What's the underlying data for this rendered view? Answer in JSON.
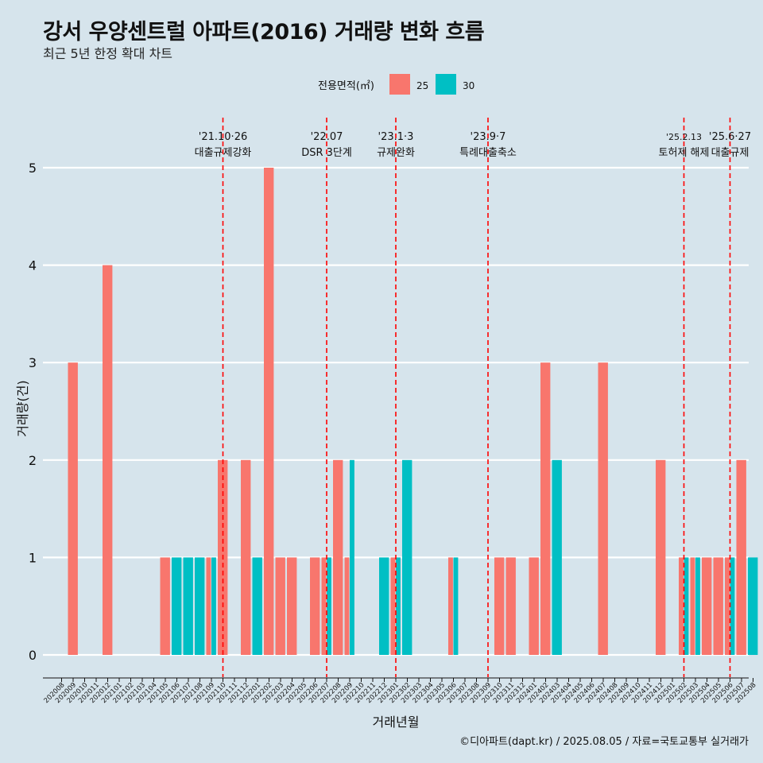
{
  "title": "강서 우양센트럴 아파트(2016) 거래량 변화 흐름",
  "subtitle": "최근 5년 한정 확대 차트",
  "caption": "©디아파트(dapt.kr) / 2025.08.05 / 자료=국토교통부 실거래가",
  "legend": {
    "title": "전용면적(㎡)",
    "placement": "top"
  },
  "colors": {
    "s25": "#f8766d",
    "s30": "#00bfc4",
    "background": "#d6e4ec",
    "grid": "#ffffff",
    "vline": "#ff0000"
  },
  "chart_data": {
    "type": "bar",
    "xlabel": "거래년월",
    "ylabel": "거래량(건)",
    "ylim": [
      0,
      5
    ],
    "yticks": [
      0,
      1,
      2,
      3,
      4,
      5
    ],
    "grid": true,
    "categories": [
      "202008",
      "202009",
      "202010",
      "202011",
      "202012",
      "202101",
      "202102",
      "202103",
      "202104",
      "202105",
      "202106",
      "202107",
      "202108",
      "202109",
      "202110",
      "202111",
      "202112",
      "202201",
      "202202",
      "202203",
      "202204",
      "202205",
      "202206",
      "202207",
      "202208",
      "202209",
      "202210",
      "202211",
      "202212",
      "202301",
      "202302",
      "202303",
      "202304",
      "202305",
      "202306",
      "202307",
      "202308",
      "202309",
      "202310",
      "202311",
      "202312",
      "202401",
      "202402",
      "202403",
      "202404",
      "202405",
      "202406",
      "202407",
      "202408",
      "202409",
      "202410",
      "202411",
      "202412",
      "202501",
      "202502",
      "202503",
      "202504",
      "202505",
      "202506",
      "202507",
      "202508"
    ],
    "series": [
      {
        "name": "25",
        "values": [
          0,
          3,
          0,
          0,
          4,
          0,
          0,
          0,
          0,
          1,
          0,
          0,
          0,
          1,
          2,
          0,
          2,
          0,
          5,
          1,
          1,
          0,
          1,
          1,
          2,
          1,
          0,
          0,
          0,
          1,
          0,
          0,
          0,
          0,
          1,
          0,
          0,
          0,
          1,
          1,
          0,
          1,
          3,
          0,
          0,
          0,
          0,
          3,
          0,
          0,
          0,
          0,
          2,
          0,
          1,
          1,
          1,
          1,
          1,
          2,
          0
        ]
      },
      {
        "name": "30",
        "values": [
          0,
          0,
          0,
          0,
          0,
          0,
          0,
          0,
          0,
          0,
          1,
          1,
          1,
          1,
          0,
          0,
          0,
          1,
          0,
          0,
          0,
          0,
          0,
          1,
          0,
          2,
          0,
          0,
          1,
          1,
          2,
          0,
          0,
          0,
          1,
          0,
          0,
          0,
          0,
          0,
          0,
          0,
          0,
          2,
          0,
          0,
          0,
          0,
          0,
          0,
          0,
          0,
          0,
          0,
          1,
          1,
          0,
          0,
          1,
          0,
          1
        ]
      }
    ],
    "annotations": [
      {
        "line1": "'21.10·26",
        "line2": "대출규제강화",
        "month": "202110"
      },
      {
        "line1": "'22.07",
        "line2": "DSR 3단계",
        "month": "202207"
      },
      {
        "line1": "'23.1·3",
        "line2": "규제완화",
        "month": "202301"
      },
      {
        "line1": "'23.9·7",
        "line2": "특례대출축소",
        "month": "202309"
      },
      {
        "line1": "'25.2.13",
        "line2": "토허제 해제",
        "month": "202502"
      },
      {
        "line1": "'25.6·27",
        "line2": "대출규제",
        "month": "202506"
      }
    ]
  }
}
